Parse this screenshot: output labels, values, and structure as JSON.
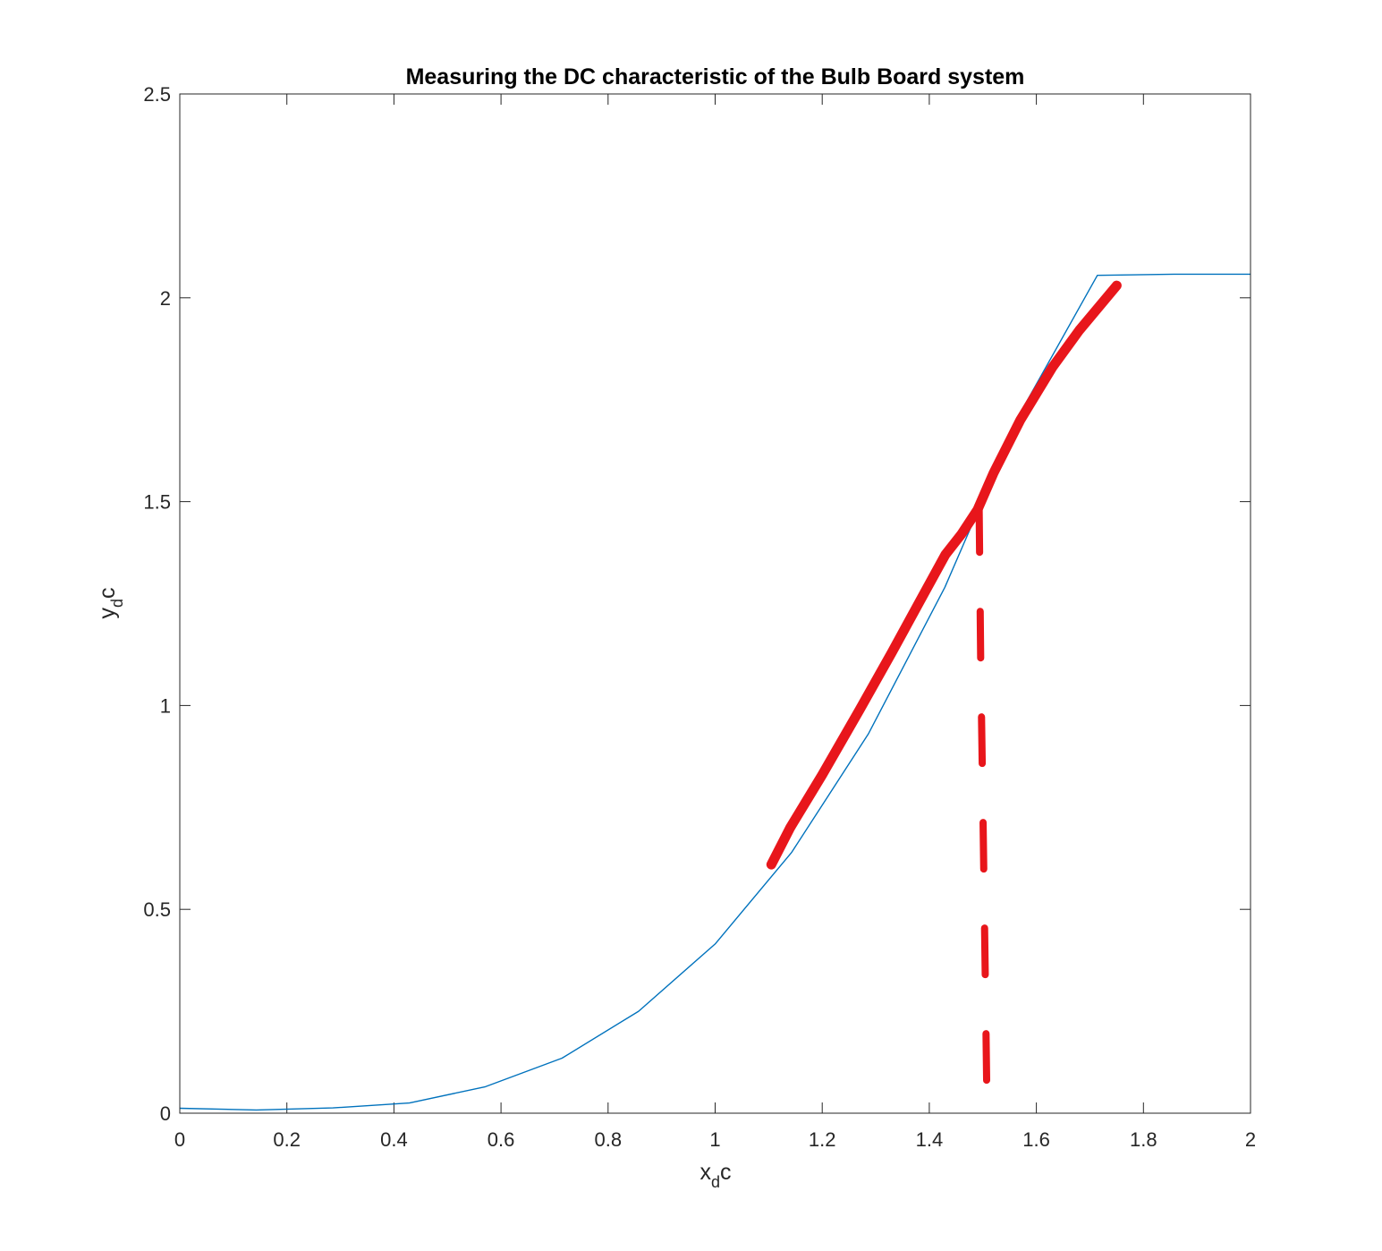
{
  "chart_data": {
    "type": "line",
    "title": "Measuring the DC characteristic of the Bulb Board system",
    "xlabel": {
      "base": "x",
      "sub": "d",
      "rest": "c"
    },
    "ylabel": {
      "base": "y",
      "sub": "d",
      "rest": "c"
    },
    "xlim": [
      0,
      2
    ],
    "ylim": [
      0,
      2.5
    ],
    "xticks": [
      "0",
      "0.2",
      "0.4",
      "0.6",
      "0.8",
      "1",
      "1.2",
      "1.4",
      "1.6",
      "1.8",
      "2"
    ],
    "yticks": [
      "0",
      "0.5",
      "1",
      "1.5",
      "2",
      "2.5"
    ],
    "grid": false,
    "series": [
      {
        "color": "#0072BD",
        "x": [
          0,
          0.143,
          0.286,
          0.429,
          0.571,
          0.714,
          0.857,
          1.0,
          1.143,
          1.286,
          1.429,
          1.571,
          1.714,
          1.857,
          2.0
        ],
        "y": [
          0.012,
          0.008,
          0.013,
          0.025,
          0.065,
          0.135,
          0.25,
          0.415,
          0.64,
          0.93,
          1.29,
          1.72,
          2.055,
          2.058,
          2.058
        ]
      }
    ],
    "annotations": [
      {
        "kind": "hand-drawn-tangent-line",
        "color": "#E8161B",
        "x": [
          1.105,
          1.14,
          1.2,
          1.27,
          1.33,
          1.38,
          1.43,
          1.46,
          1.49,
          1.52,
          1.57,
          1.63,
          1.68,
          1.75
        ],
        "y": [
          0.61,
          0.7,
          0.83,
          0.99,
          1.13,
          1.25,
          1.37,
          1.42,
          1.48,
          1.57,
          1.7,
          1.83,
          1.92,
          2.03
        ]
      },
      {
        "kind": "hand-drawn-dashed-vertical",
        "color": "#E8161B",
        "x": [
          1.493,
          1.496,
          1.5,
          1.505,
          1.508
        ],
        "y": [
          1.49,
          1.1,
          0.75,
          0.3,
          0.0
        ]
      }
    ]
  }
}
